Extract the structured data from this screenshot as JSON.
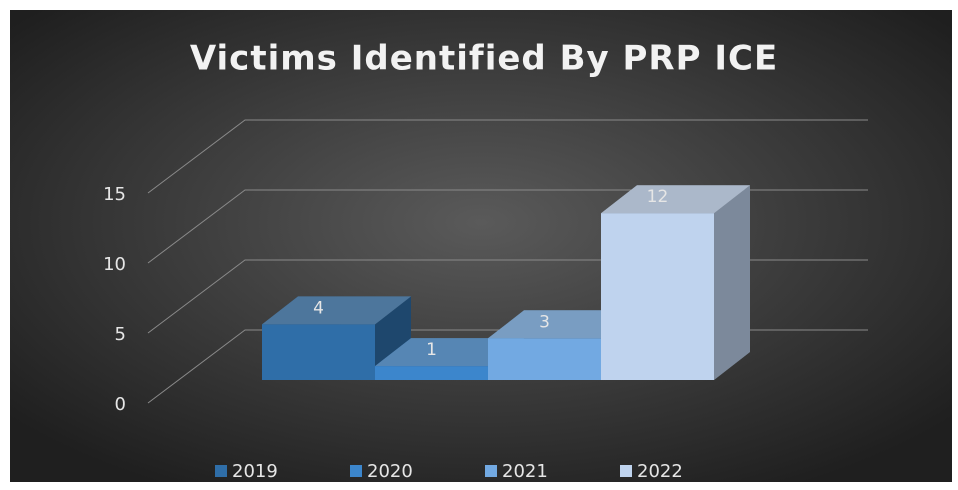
{
  "chart_data": {
    "type": "bar3d",
    "title": "Victims Identified By PRP ICE",
    "categories": [
      null
    ],
    "series": [
      {
        "name": "2019",
        "color": "#2f6ea8",
        "values": [
          4
        ]
      },
      {
        "name": "2020",
        "color": "#3c86cc",
        "values": [
          1
        ]
      },
      {
        "name": "2021",
        "color": "#72a9e2",
        "values": [
          3
        ]
      },
      {
        "name": "2022",
        "color": "#bfd3ee",
        "values": [
          12
        ]
      }
    ],
    "ylim": [
      0,
      15
    ],
    "yticks": [
      0,
      5,
      10,
      15
    ],
    "grid": true,
    "data_labels": true,
    "legend": "bottom"
  }
}
